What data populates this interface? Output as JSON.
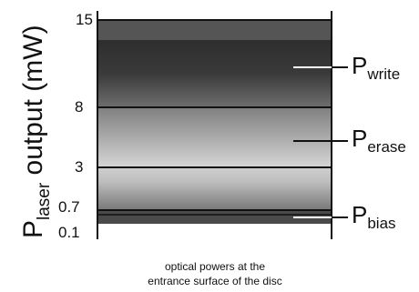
{
  "y_axis": {
    "label_main": "P",
    "label_sub": "laser",
    "label_rest": " output (mW)",
    "ticks": [
      {
        "label": "15",
        "value": 15
      },
      {
        "label": "8",
        "value": 8
      },
      {
        "label": "3",
        "value": 3
      },
      {
        "label": "0.7",
        "value": 0.7
      },
      {
        "label": "0.1",
        "value": 0.1
      }
    ]
  },
  "levels": [
    {
      "name": "write",
      "main": "P",
      "sub": "write"
    },
    {
      "name": "erase",
      "main": "P",
      "sub": "erase"
    },
    {
      "name": "bias",
      "main": "P",
      "sub": "bias"
    }
  ],
  "caption": {
    "line1": "optical powers at the",
    "line2": "entrance surface of the disc"
  },
  "colors": {
    "axis": "#111111",
    "write_band": "#2a2a2a",
    "erase_band": "#9a9a9a",
    "bias_band": "#c8c8c8"
  }
}
